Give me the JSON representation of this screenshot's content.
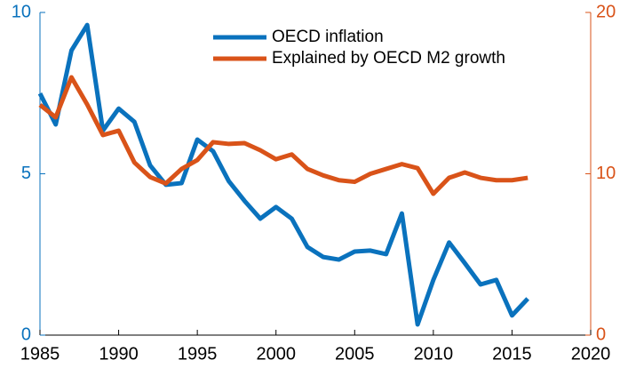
{
  "chart_data": {
    "type": "line",
    "x": [
      1985,
      1986,
      1987,
      1988,
      1989,
      1990,
      1991,
      1992,
      1993,
      1994,
      1995,
      1996,
      1997,
      1998,
      1999,
      2000,
      2001,
      2002,
      2003,
      2004,
      2005,
      2006,
      2007,
      2008,
      2009,
      2010,
      2011,
      2012,
      2013,
      2014,
      2015,
      2016
    ],
    "series": [
      {
        "name": "OECD inflation",
        "color": "#0a72bd",
        "values": [
          7.49,
          6.53,
          8.82,
          9.61,
          6.34,
          7.02,
          6.61,
          5.26,
          4.66,
          4.71,
          6.06,
          5.7,
          4.77,
          4.16,
          3.61,
          3.97,
          3.61,
          2.73,
          2.42,
          2.34,
          2.59,
          2.62,
          2.51,
          3.77,
          0.33,
          1.71,
          2.87,
          2.23,
          1.57,
          1.71,
          0.61,
          1.13
        ]
      },
      {
        "name": "Explained by OECD M2 growth",
        "color": "#d95319",
        "axis": "y2",
        "values": [
          14.27,
          13.5,
          15.98,
          14.3,
          12.4,
          12.67,
          10.7,
          9.8,
          9.4,
          10.3,
          10.85,
          11.96,
          11.85,
          11.9,
          11.46,
          10.9,
          11.2,
          10.3,
          9.9,
          9.6,
          9.5,
          10.0,
          10.3,
          10.6,
          10.35,
          8.76,
          9.75,
          10.08,
          9.75,
          9.6,
          9.6,
          9.75
        ]
      }
    ],
    "xlim": [
      1985,
      2020
    ],
    "xticks": [
      1985,
      1990,
      1995,
      2000,
      2005,
      2010,
      2015,
      2020
    ],
    "ylim": [
      0,
      10
    ],
    "yticks": [
      0,
      5,
      10
    ],
    "y2lim": [
      0,
      20
    ],
    "y2ticks": [
      0,
      10,
      20
    ],
    "legend": "upper center",
    "grid": false
  }
}
